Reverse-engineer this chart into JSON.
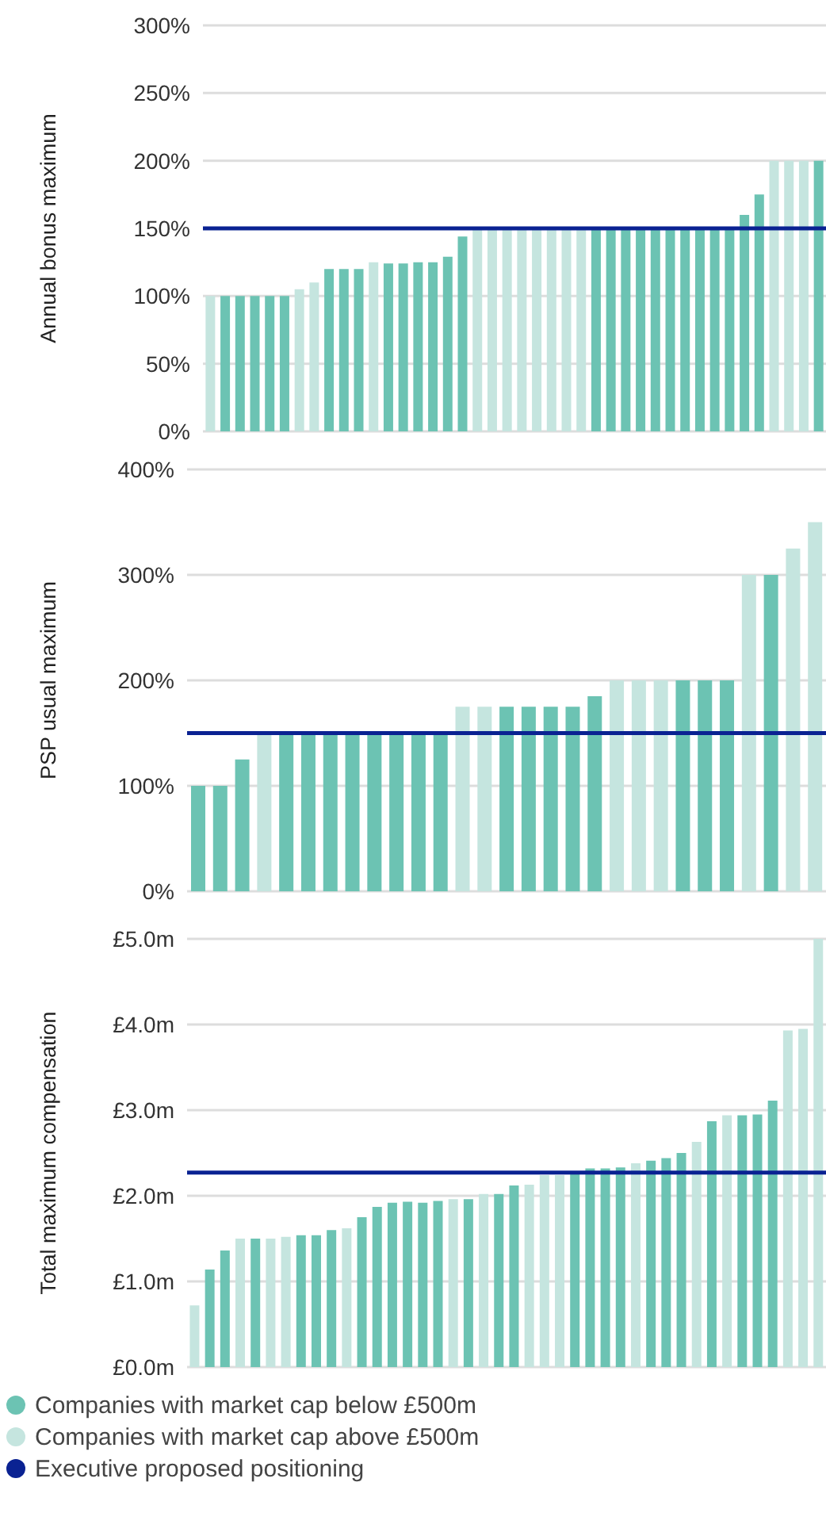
{
  "chart_data": [
    {
      "type": "bar",
      "ylabel": "Annual bonus maximum",
      "categories": [
        null,
        null,
        null,
        null,
        null,
        null,
        null,
        null,
        null,
        null,
        null,
        null,
        null,
        null,
        null,
        null,
        null,
        null,
        null,
        null,
        null,
        null,
        null,
        null,
        null,
        null,
        null,
        null,
        null,
        null,
        null,
        null,
        null,
        null,
        null,
        null,
        null,
        null,
        null,
        null,
        null,
        null
      ],
      "stacked": true,
      "series": [
        {
          "color": "#6cc3b3",
          "values": [
            null,
            100,
            100,
            100,
            100,
            100,
            null,
            null,
            120,
            120,
            120,
            null,
            124,
            124,
            125,
            125,
            129,
            144,
            null,
            null,
            null,
            null,
            null,
            null,
            null,
            null,
            150,
            150,
            150,
            150,
            150,
            150,
            150,
            150,
            150,
            150,
            160,
            175,
            null,
            null,
            null,
            200
          ]
        },
        {
          "color": "#c5e5df",
          "values": [
            100,
            null,
            null,
            null,
            null,
            null,
            105,
            110,
            null,
            null,
            null,
            125,
            null,
            null,
            null,
            null,
            null,
            null,
            150,
            150,
            150,
            150,
            150,
            150,
            150,
            150,
            null,
            null,
            null,
            null,
            null,
            null,
            null,
            null,
            null,
            null,
            null,
            null,
            200,
            200,
            200,
            null
          ]
        }
      ],
      "ylim": [
        0,
        300
      ],
      "yticks": [
        {
          "value": 0,
          "label": "0%"
        },
        {
          "value": 50,
          "label": "50%"
        },
        {
          "value": 100,
          "label": "100%"
        },
        {
          "value": 150,
          "label": "150%"
        },
        {
          "value": 200,
          "label": "200%"
        },
        {
          "value": 250,
          "label": "250%"
        },
        {
          "value": 300,
          "label": "300%"
        }
      ],
      "ref_lines": [
        {
          "axis": "y",
          "value": 150,
          "color": "#0a2292"
        }
      ],
      "grid": "y",
      "tick_labels": "y"
    },
    {
      "type": "bar",
      "ylabel": "PSP usual maximum",
      "categories": [
        null,
        null,
        null,
        null,
        null,
        null,
        null,
        null,
        null,
        null,
        null,
        null,
        null,
        null,
        null,
        null,
        null,
        null,
        null,
        null,
        null,
        null,
        null,
        null,
        null,
        null,
        null,
        null,
        null
      ],
      "stacked": true,
      "series": [
        {
          "color": "#6cc3b3",
          "values": [
            100,
            100,
            125,
            null,
            150,
            150,
            150,
            150,
            150,
            150,
            150,
            150,
            null,
            null,
            175,
            175,
            175,
            175,
            185,
            null,
            null,
            null,
            200,
            200,
            200,
            null,
            300,
            null,
            null
          ]
        },
        {
          "color": "#c5e5df",
          "values": [
            null,
            null,
            null,
            150,
            null,
            null,
            null,
            null,
            null,
            null,
            null,
            null,
            175,
            175,
            null,
            null,
            null,
            null,
            null,
            200,
            200,
            200,
            null,
            null,
            null,
            300,
            null,
            325,
            350
          ]
        }
      ],
      "ylim": [
        0,
        400
      ],
      "yticks": [
        {
          "value": 0,
          "label": "0%"
        },
        {
          "value": 100,
          "label": "100%"
        },
        {
          "value": 200,
          "label": "200%"
        },
        {
          "value": 300,
          "label": "300%"
        },
        {
          "value": 400,
          "label": "400%"
        }
      ],
      "ref_lines": [
        {
          "axis": "y",
          "value": 150,
          "color": "#0a2292"
        }
      ],
      "grid": "y",
      "tick_labels": "y"
    },
    {
      "type": "bar",
      "ylabel": "Total maximum compensation",
      "categories": [
        null,
        null,
        null,
        null,
        null,
        null,
        null,
        null,
        null,
        null,
        null,
        null,
        null,
        null,
        null,
        null,
        null,
        null,
        null,
        null,
        null,
        null,
        null,
        null,
        null,
        null,
        null,
        null,
        null,
        null,
        null,
        null,
        null,
        null,
        null,
        null,
        null,
        null,
        null,
        null,
        null,
        null
      ],
      "stacked": true,
      "series": [
        {
          "name": "Companies with market cap below £500m",
          "color": "#6cc3b3",
          "values": [
            null,
            1.14,
            1.36,
            null,
            1.5,
            null,
            null,
            1.54,
            1.54,
            1.6,
            null,
            1.75,
            1.87,
            1.92,
            1.93,
            1.92,
            1.94,
            null,
            1.96,
            null,
            2.02,
            2.12,
            null,
            null,
            null,
            2.25,
            2.32,
            2.32,
            2.33,
            null,
            2.41,
            2.44,
            2.5,
            null,
            2.87,
            null,
            2.94,
            2.95,
            3.11,
            null,
            null,
            null
          ]
        },
        {
          "name": "Companies with market cap above £500m",
          "color": "#c5e5df",
          "values": [
            0.72,
            null,
            null,
            1.5,
            null,
            1.5,
            1.52,
            null,
            null,
            null,
            1.62,
            null,
            null,
            null,
            null,
            null,
            null,
            1.96,
            null,
            2.02,
            null,
            null,
            2.13,
            2.24,
            2.24,
            null,
            null,
            null,
            null,
            2.38,
            null,
            null,
            null,
            2.63,
            null,
            2.94,
            null,
            null,
            null,
            3.93,
            3.95,
            5.0
          ]
        }
      ],
      "ylim": [
        0,
        5
      ],
      "yticks": [
        {
          "value": 0,
          "label": "£0.0m"
        },
        {
          "value": 1,
          "label": "£1.0m"
        },
        {
          "value": 2,
          "label": "£2.0m"
        },
        {
          "value": 3,
          "label": "£3.0m"
        },
        {
          "value": 4,
          "label": "£4.0m"
        },
        {
          "value": 5,
          "label": "£5.0m"
        }
      ],
      "ref_lines": [
        {
          "axis": "y",
          "value": 2.27,
          "color": "#0a2292",
          "label": "Executive proposed positioning"
        }
      ],
      "grid": "y",
      "tick_labels": "y",
      "legend": "bottom"
    }
  ]
}
